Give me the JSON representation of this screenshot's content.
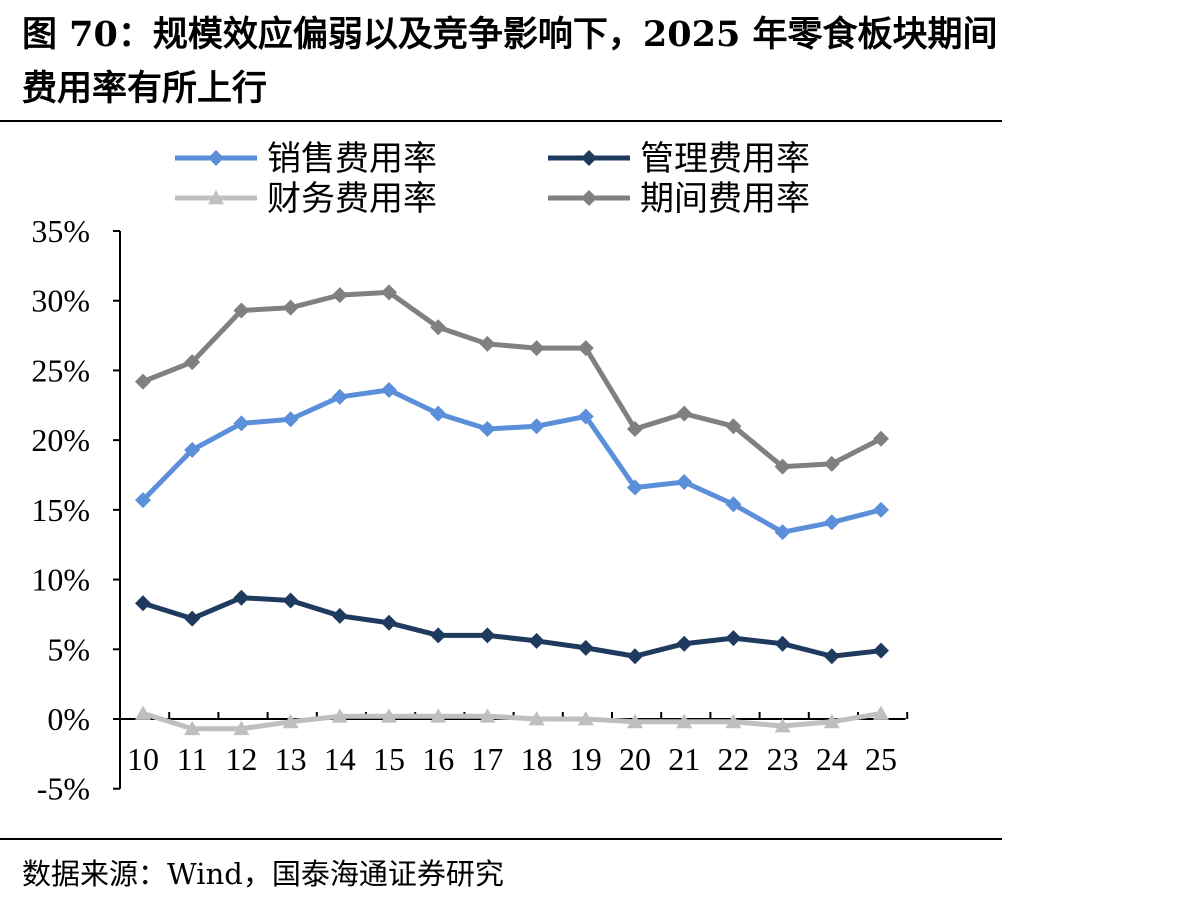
{
  "title": "图 70：规模效应偏弱以及竞争影响下，2025 年零食板块期间费用率有所上行",
  "source": "数据来源：Wind，国泰海通证券研究",
  "chart_data": {
    "type": "line",
    "title": "",
    "xlabel": "",
    "ylabel": "",
    "categories": [
      "10",
      "11",
      "12",
      "13",
      "14",
      "15",
      "16",
      "17",
      "18",
      "19",
      "20",
      "21",
      "22",
      "23",
      "24",
      "25"
    ],
    "ylim": [
      -5,
      35
    ],
    "yticks": [
      -5,
      0,
      5,
      10,
      15,
      20,
      25,
      30,
      35
    ],
    "ytick_labels": [
      "-5%",
      "0%",
      "5%",
      "10%",
      "15%",
      "20%",
      "25%",
      "30%",
      "35%"
    ],
    "grid": false,
    "legend_position": "top",
    "series": [
      {
        "name": "销售费用率",
        "color": "#5b8fd9",
        "marker": "diamond",
        "values": [
          15.7,
          19.3,
          21.2,
          21.5,
          23.1,
          23.6,
          21.9,
          20.8,
          21.0,
          21.7,
          16.6,
          17.0,
          15.4,
          13.4,
          14.1,
          15.0
        ]
      },
      {
        "name": "管理费用率",
        "color": "#1f3a5f",
        "marker": "diamond",
        "values": [
          8.3,
          7.2,
          8.7,
          8.5,
          7.4,
          6.9,
          6.0,
          6.0,
          5.6,
          5.1,
          4.5,
          5.4,
          5.8,
          5.4,
          4.5,
          4.9
        ]
      },
      {
        "name": "财务费用率",
        "color": "#bfbfbf",
        "marker": "triangle",
        "values": [
          0.4,
          -0.7,
          -0.7,
          -0.2,
          0.2,
          0.2,
          0.2,
          0.2,
          0.0,
          0.0,
          -0.2,
          -0.2,
          -0.2,
          -0.5,
          -0.2,
          0.4
        ]
      },
      {
        "name": "期间费用率",
        "color": "#808080",
        "marker": "diamond",
        "values": [
          24.2,
          25.6,
          29.3,
          29.5,
          30.4,
          30.6,
          28.1,
          26.9,
          26.6,
          26.6,
          20.8,
          21.9,
          21.0,
          18.1,
          18.3,
          20.1
        ]
      }
    ]
  }
}
